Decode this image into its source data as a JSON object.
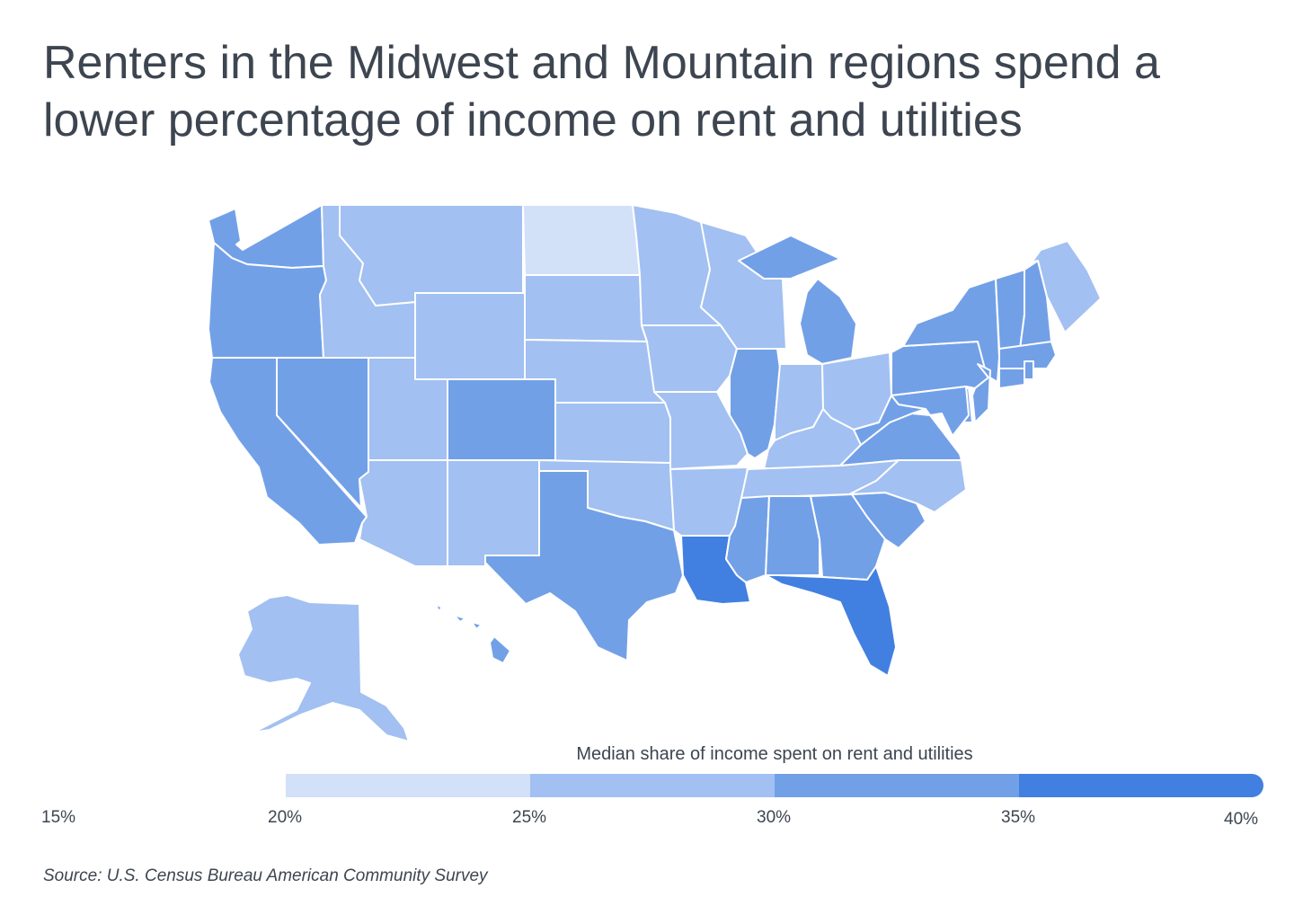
{
  "title": "Renters in the Midwest and Mountain regions spend a lower percentage of income on rent and utilities",
  "legend": {
    "title": "Median share of income spent on rent and utilities",
    "ticks": [
      "15%",
      "20%",
      "25%",
      "30%",
      "35%",
      "40%"
    ],
    "bins": [
      {
        "min": 20,
        "max": 25,
        "color": "#d2e1f8"
      },
      {
        "min": 25,
        "max": 30,
        "color": "#a2c0f1"
      },
      {
        "min": 30,
        "max": 35,
        "color": "#72a0e7"
      },
      {
        "min": 35,
        "max": 40,
        "color": "#4180e0"
      }
    ]
  },
  "source": "Source: U.S. Census Bureau American Community Survey",
  "chart_data": {
    "type": "choropleth",
    "region": "United States",
    "value_label": "Median share of income spent on rent and utilities",
    "scale_range": [
      15,
      40
    ],
    "bin_edges": [
      20,
      25,
      30,
      35,
      40
    ],
    "states": [
      {
        "state": "WA",
        "bin": "30-35%"
      },
      {
        "state": "OR",
        "bin": "30-35%"
      },
      {
        "state": "CA",
        "bin": "30-35%"
      },
      {
        "state": "NV",
        "bin": "30-35%"
      },
      {
        "state": "ID",
        "bin": "25-30%"
      },
      {
        "state": "MT",
        "bin": "25-30%"
      },
      {
        "state": "WY",
        "bin": "25-30%"
      },
      {
        "state": "UT",
        "bin": "25-30%"
      },
      {
        "state": "CO",
        "bin": "30-35%"
      },
      {
        "state": "AZ",
        "bin": "25-30%"
      },
      {
        "state": "NM",
        "bin": "25-30%"
      },
      {
        "state": "ND",
        "bin": "20-25%"
      },
      {
        "state": "SD",
        "bin": "25-30%"
      },
      {
        "state": "NE",
        "bin": "25-30%"
      },
      {
        "state": "KS",
        "bin": "25-30%"
      },
      {
        "state": "OK",
        "bin": "25-30%"
      },
      {
        "state": "TX",
        "bin": "30-35%"
      },
      {
        "state": "MN",
        "bin": "25-30%"
      },
      {
        "state": "IA",
        "bin": "25-30%"
      },
      {
        "state": "MO",
        "bin": "25-30%"
      },
      {
        "state": "AR",
        "bin": "25-30%"
      },
      {
        "state": "LA",
        "bin": "35-40%"
      },
      {
        "state": "WI",
        "bin": "25-30%"
      },
      {
        "state": "IL",
        "bin": "30-35%"
      },
      {
        "state": "MI",
        "bin": "30-35%"
      },
      {
        "state": "IN",
        "bin": "25-30%"
      },
      {
        "state": "OH",
        "bin": "25-30%"
      },
      {
        "state": "KY",
        "bin": "25-30%"
      },
      {
        "state": "TN",
        "bin": "25-30%"
      },
      {
        "state": "MS",
        "bin": "30-35%"
      },
      {
        "state": "AL",
        "bin": "30-35%"
      },
      {
        "state": "GA",
        "bin": "30-35%"
      },
      {
        "state": "FL",
        "bin": "35-40%"
      },
      {
        "state": "SC",
        "bin": "30-35%"
      },
      {
        "state": "NC",
        "bin": "25-30%"
      },
      {
        "state": "VA",
        "bin": "30-35%"
      },
      {
        "state": "WV",
        "bin": "30-35%"
      },
      {
        "state": "PA",
        "bin": "30-35%"
      },
      {
        "state": "NY",
        "bin": "30-35%"
      },
      {
        "state": "VT",
        "bin": "30-35%"
      },
      {
        "state": "NH",
        "bin": "30-35%"
      },
      {
        "state": "ME",
        "bin": "25-30%"
      },
      {
        "state": "MA",
        "bin": "30-35%"
      },
      {
        "state": "RI",
        "bin": "30-35%"
      },
      {
        "state": "CT",
        "bin": "30-35%"
      },
      {
        "state": "NJ",
        "bin": "30-35%"
      },
      {
        "state": "DE",
        "bin": "30-35%"
      },
      {
        "state": "MD",
        "bin": "30-35%"
      },
      {
        "state": "AK",
        "bin": "25-30%"
      },
      {
        "state": "HI",
        "bin": "30-35%"
      }
    ]
  }
}
